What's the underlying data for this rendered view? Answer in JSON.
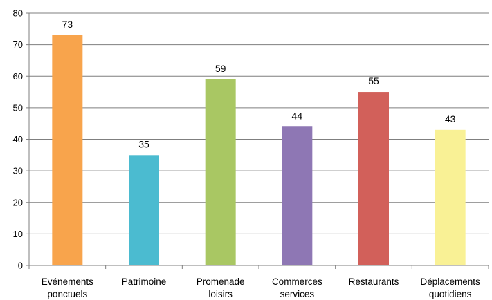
{
  "chart_data": {
    "type": "bar",
    "title": "",
    "xlabel": "",
    "ylabel": "",
    "categories": [
      [
        "Evénements",
        "ponctuels"
      ],
      [
        "Patrimoine"
      ],
      [
        "Promenade",
        "loisirs"
      ],
      [
        "Commerces",
        "services"
      ],
      [
        "Restaurants"
      ],
      [
        "Déplacements",
        "quotidiens"
      ]
    ],
    "values": [
      73,
      35,
      59,
      44,
      55,
      43
    ],
    "colors": [
      "#F8A44C",
      "#4BBBD0",
      "#A9C763",
      "#8E77B4",
      "#D2605A",
      "#F9F195"
    ],
    "ylim": [
      0,
      80
    ],
    "yticks": [
      0,
      10,
      20,
      30,
      40,
      50,
      60,
      70,
      80
    ],
    "grid": true,
    "legend": "none"
  }
}
